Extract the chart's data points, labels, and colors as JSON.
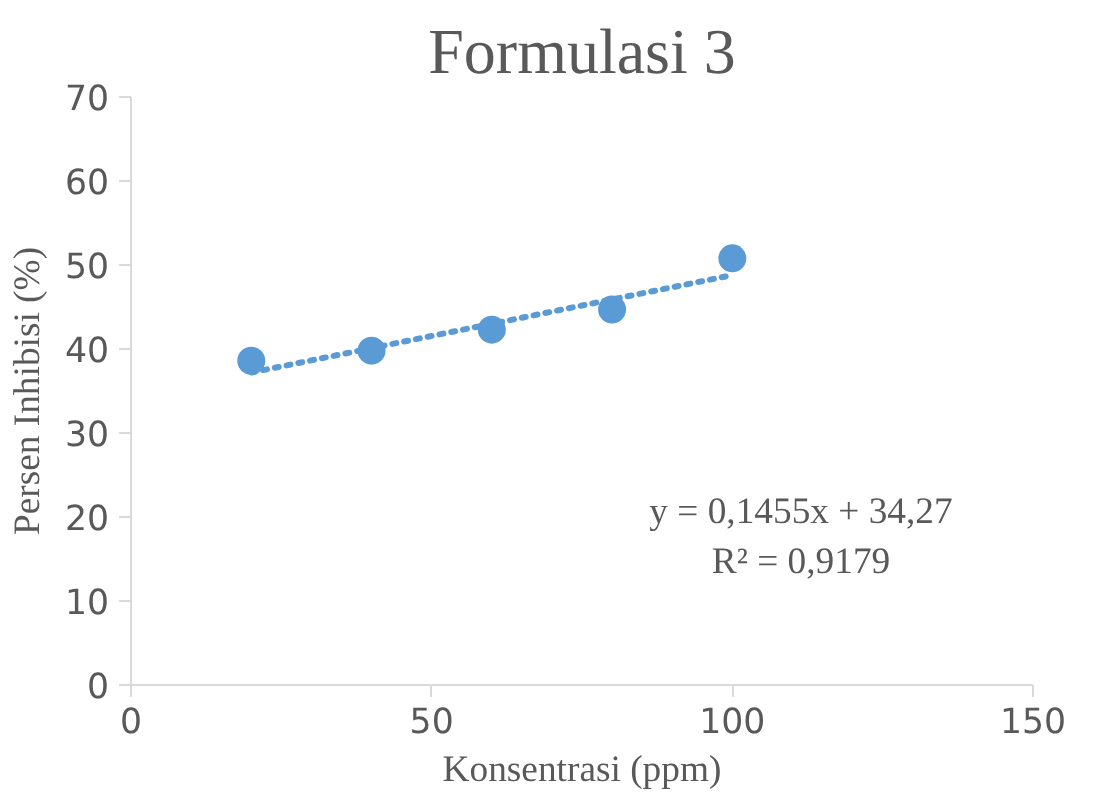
{
  "chart_data": {
    "type": "scatter",
    "title": "Formulasi 3",
    "xlabel": "Konsentrasi (ppm)",
    "ylabel": "Persen Inhibisi (%)",
    "x": [
      20,
      40,
      60,
      80,
      100
    ],
    "series": [
      {
        "color": "#5b9bd5",
        "values": [
          38.6,
          39.8,
          42.3,
          44.7,
          50.8
        ],
        "marker": "circle"
      },
      {
        "type": "line",
        "color": "#5b9bd5",
        "x": [
          20,
          100
        ],
        "values": [
          37.2,
          48.8
        ],
        "line_style": "dotted",
        "marker": "none"
      }
    ],
    "annotations": [
      "y = 0,1455x + 34,27",
      "R² = 0,9179"
    ],
    "xlim": [
      0,
      150
    ],
    "xticks": [
      0,
      50,
      100,
      150
    ],
    "ylim": [
      0,
      70
    ],
    "yticks": [
      0,
      10,
      20,
      30,
      40,
      50,
      60,
      70
    ],
    "grid": false
  }
}
